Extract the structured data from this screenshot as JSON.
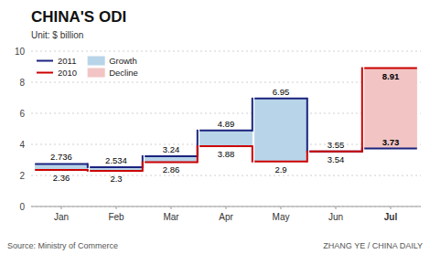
{
  "chart_data": {
    "type": "step",
    "title": "CHINA'S ODI",
    "subtitle": "Unit: $ billion",
    "source": "Source: Ministry of Commerce",
    "credit": "ZHANG YE / CHINA DAILY",
    "categories": [
      "Jan",
      "Feb",
      "Mar",
      "Apr",
      "May",
      "Jun",
      "Jul"
    ],
    "series": [
      {
        "name": "2011",
        "color": "#1a237e",
        "values": [
          2.736,
          2.534,
          3.24,
          4.89,
          6.95,
          3.55,
          3.73
        ]
      },
      {
        "name": "2010",
        "color": "#cc0000",
        "values": [
          2.36,
          2.3,
          2.86,
          3.88,
          2.9,
          3.54,
          8.91
        ]
      }
    ],
    "bands": [
      {
        "name": "Growth",
        "color": "#b8d4e8"
      },
      {
        "name": "Decline",
        "color": "#f2c4c4"
      }
    ],
    "ylim": [
      0,
      10
    ],
    "yticks": [
      0,
      2,
      4,
      6,
      8,
      10
    ],
    "grid": true,
    "legend": "top-left",
    "data_labels": true
  }
}
